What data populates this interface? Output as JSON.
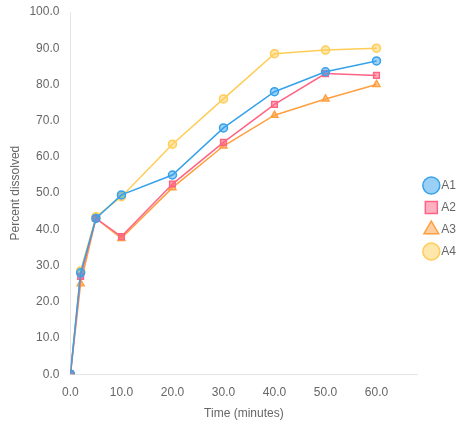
{
  "chart_data": {
    "type": "line",
    "xlabel": "Time (minutes)",
    "ylabel": "Percent dissolved",
    "x": [
      0,
      2,
      5,
      10,
      20,
      30,
      40,
      50,
      60
    ],
    "series": [
      {
        "name": "A1",
        "marker": "circle",
        "values": [
          0.0,
          28.0,
          43.0,
          49.5,
          55.0,
          68.0,
          78.0,
          83.5,
          86.5
        ]
      },
      {
        "name": "A2",
        "marker": "square",
        "values": [
          0.0,
          27.0,
          43.0,
          38.0,
          52.5,
          64.0,
          74.5,
          83.0,
          82.5
        ]
      },
      {
        "name": "A3",
        "marker": "triangle",
        "values": [
          0.0,
          25.0,
          43.0,
          37.5,
          51.5,
          63.0,
          71.5,
          76.0,
          80.0
        ]
      },
      {
        "name": "A4",
        "marker": "circle",
        "values": [
          0.0,
          28.5,
          43.5,
          49.0,
          63.5,
          76.0,
          88.5,
          89.5,
          90.0
        ]
      }
    ],
    "xlim": [
      0,
      68
    ],
    "ylim": [
      0.0,
      100.0
    ],
    "xticks": [
      {
        "value": 0,
        "label": "0.0"
      },
      {
        "value": 10,
        "label": "10.0"
      },
      {
        "value": 20,
        "label": "20.0"
      },
      {
        "value": 30,
        "label": "30.0"
      },
      {
        "value": 40,
        "label": "40.0"
      },
      {
        "value": 50,
        "label": "50.0"
      },
      {
        "value": 60,
        "label": "60.0"
      }
    ],
    "yticks": [
      {
        "value": 0,
        "label": "0.0"
      },
      {
        "value": 10,
        "label": "10.0"
      },
      {
        "value": 20,
        "label": "20.0"
      },
      {
        "value": 30,
        "label": "30.0"
      },
      {
        "value": 40,
        "label": "40.0"
      },
      {
        "value": 50,
        "label": "50.0"
      },
      {
        "value": 60,
        "label": "60.0"
      },
      {
        "value": 70,
        "label": "70.0"
      },
      {
        "value": 80,
        "label": "80.0"
      },
      {
        "value": 90,
        "label": "90.0"
      },
      {
        "value": 100,
        "label": "100.0"
      }
    ],
    "grid": false,
    "legend": "right"
  }
}
